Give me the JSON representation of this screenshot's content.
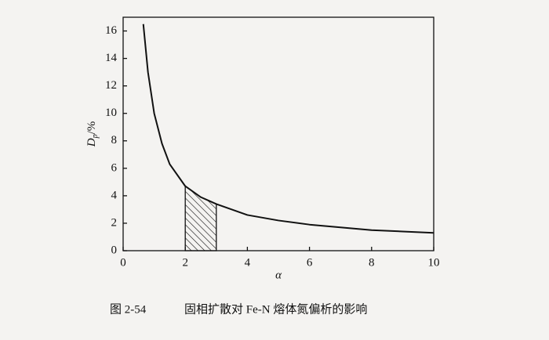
{
  "chart_data": {
    "type": "line",
    "caption_number": "图 2-54",
    "caption": "固相扩散对 Fe-N 熔体氮偏析的影响",
    "ylabel": {
      "main": "D",
      "sub": "p",
      "unit": "/%"
    },
    "xlabel": "α",
    "x": [
      0.65,
      0.8,
      1,
      1.25,
      1.5,
      2,
      2.5,
      3,
      4,
      5,
      6,
      7,
      8,
      9,
      10
    ],
    "series": [
      {
        "color": "#111111",
        "values": [
          16.5,
          13,
          10,
          7.8,
          6.3,
          4.7,
          3.9,
          3.4,
          2.6,
          2.2,
          1.9,
          1.7,
          1.5,
          1.4,
          1.3
        ]
      }
    ],
    "highlight_range": [
      2,
      3
    ],
    "xlim": [
      0,
      10
    ],
    "xticks": [
      0,
      2,
      4,
      6,
      8,
      10
    ],
    "ylim": [
      0,
      17
    ],
    "yticks": [
      0,
      2,
      4,
      6,
      8,
      10,
      12,
      14,
      16
    ]
  }
}
